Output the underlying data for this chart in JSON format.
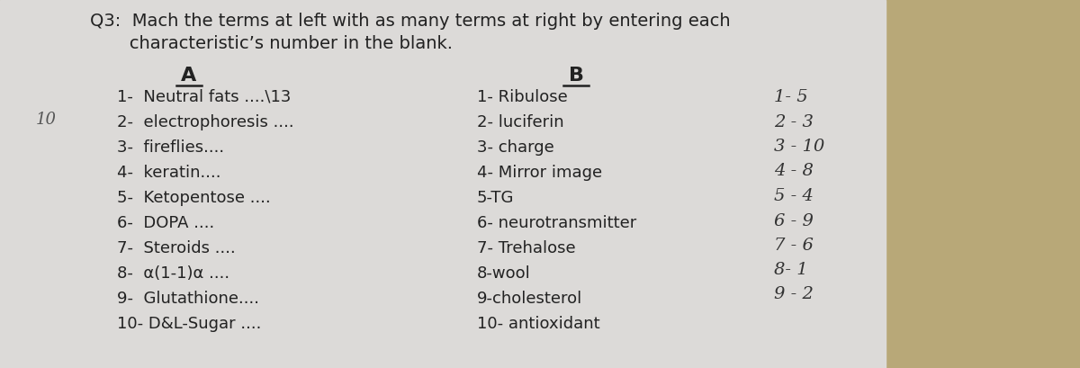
{
  "bg_color_left": "#dcdad8",
  "bg_color_right": "#c8b98a",
  "fig_bg": "#b8a878",
  "header_line1": "Q3:  Mach the terms at left with as many terms at right by entering each",
  "header_line2": "       characteristic’s number in the blank.",
  "col_A_header": "A",
  "col_B_header": "B",
  "col_A_items": [
    "1-  Neutral fats ....\\13",
    "2-  electrophoresis ....",
    "3-  fireflies....",
    "4-  keratin....",
    "5-  Ketopentose ....",
    "6-  DOPA ....",
    "7-  Steroids ....",
    "8-  α(1-1)α ....",
    "9-  Glutathione....",
    "10- D&L-Sugar ...."
  ],
  "col_B_items": [
    "1- Ribulose",
    "2- luciferin",
    "3- charge",
    "4- Mirror image",
    "5-TG",
    "6- neurotransmitter",
    "7- Trehalose",
    "8-wool",
    "9-cholesterol",
    "10- antioxidant"
  ],
  "answers": [
    "1- 5",
    "2 - 3",
    "3 - 10",
    "4 - 8",
    "5 - 4",
    "6 - 9",
    "7 - 6",
    "8- 1",
    "9 - 2"
  ],
  "left_margin_note": "10",
  "font_size_header": 14,
  "font_size_body": 13,
  "font_size_answers": 13,
  "text_color": "#222222",
  "answer_color": "#333333"
}
